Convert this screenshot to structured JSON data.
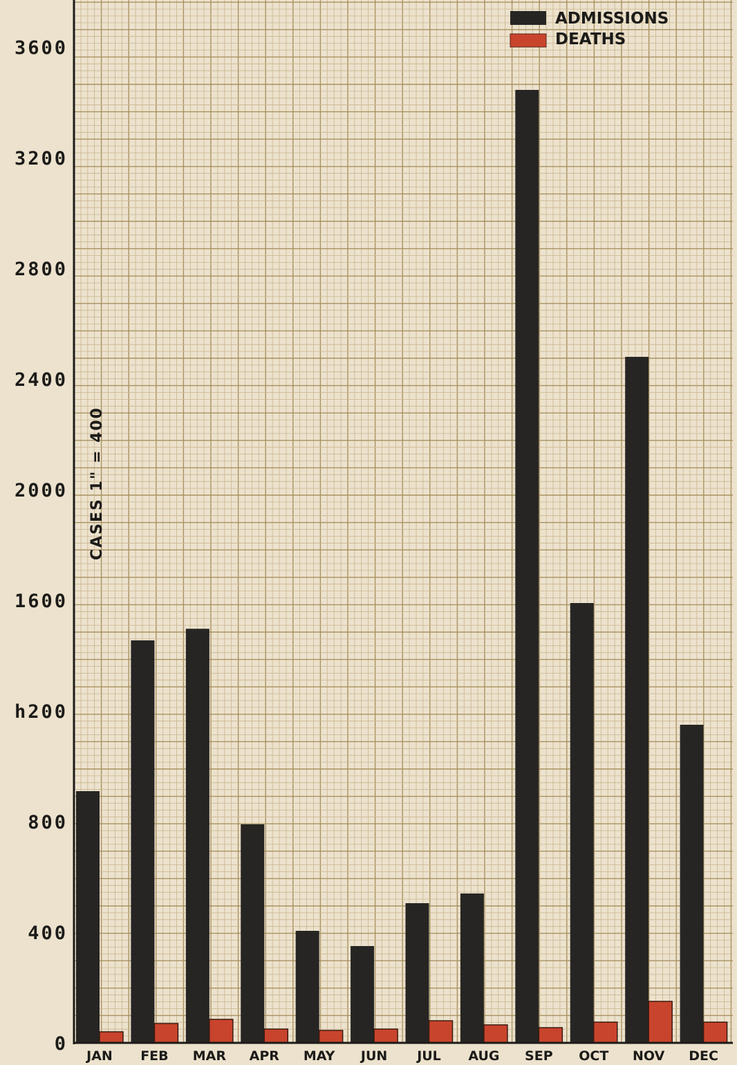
{
  "chart_data": {
    "type": "bar",
    "title": "",
    "xlabel": "",
    "ylabel": "CASES 1\" = 400",
    "categories": [
      "JAN",
      "FEB",
      "MAR",
      "APR",
      "MAY",
      "JUN",
      "JUL",
      "AUG",
      "SEP",
      "OCT",
      "NOV",
      "DEC"
    ],
    "series": [
      {
        "name": "ADMISSIONS",
        "color": "#262523",
        "values": [
          910,
          1455,
          1497,
          790,
          405,
          350,
          505,
          540,
          3445,
          1590,
          2480,
          1150
        ]
      },
      {
        "name": "DEATHS",
        "color": "#c9442c",
        "values": [
          40,
          70,
          85,
          50,
          45,
          50,
          80,
          65,
          55,
          75,
          150,
          75
        ]
      }
    ],
    "yticks": [
      "0",
      "400",
      "800",
      "h200",
      "1600",
      "2000",
      "2400",
      "2800",
      "3200",
      "3600"
    ],
    "ylim": [
      0,
      3770
    ],
    "grid": true,
    "legend_position": "top-right"
  }
}
